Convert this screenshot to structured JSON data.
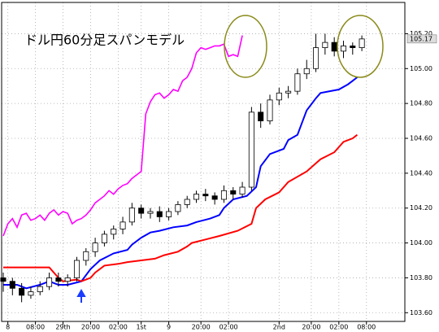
{
  "chart_data": {
    "type": "candlestick",
    "title": "ドル円60分足スパンモデル",
    "x": [
      0,
      2,
      4,
      6,
      8,
      10,
      12,
      14,
      16,
      18,
      20,
      22,
      24,
      26,
      28,
      30,
      32,
      34,
      36,
      38,
      40,
      42,
      44,
      46,
      48,
      50,
      52,
      54,
      56,
      58,
      60,
      62,
      64,
      66,
      68,
      70,
      72,
      74,
      76,
      78
    ],
    "open": [
      103.8,
      103.78,
      103.74,
      103.7,
      103.72,
      103.75,
      103.8,
      103.78,
      103.8,
      103.9,
      103.95,
      104.0,
      104.05,
      104.08,
      104.12,
      104.2,
      104.17,
      104.18,
      104.15,
      104.18,
      104.22,
      104.25,
      104.28,
      104.27,
      104.25,
      104.3,
      104.28,
      104.32,
      104.75,
      104.7,
      104.82,
      104.86,
      104.87,
      104.97,
      105.0,
      105.12,
      105.15,
      105.1,
      105.13,
      105.12
    ],
    "high": [
      103.83,
      103.8,
      103.77,
      103.75,
      103.78,
      103.83,
      103.83,
      103.82,
      103.92,
      103.97,
      104.03,
      104.07,
      104.1,
      104.15,
      104.23,
      104.22,
      104.2,
      104.21,
      104.2,
      104.24,
      104.27,
      104.3,
      104.31,
      104.29,
      104.33,
      104.32,
      104.35,
      104.78,
      104.8,
      104.85,
      104.89,
      104.9,
      105.0,
      105.05,
      105.2,
      105.2,
      105.18,
      105.16,
      105.15,
      105.19
    ],
    "low": [
      103.72,
      103.7,
      103.66,
      103.68,
      103.7,
      103.73,
      103.75,
      103.75,
      103.78,
      103.87,
      103.92,
      103.98,
      104.02,
      104.05,
      104.1,
      104.14,
      104.14,
      104.12,
      104.13,
      104.16,
      104.2,
      104.23,
      104.24,
      104.22,
      104.23,
      104.25,
      104.26,
      104.3,
      104.66,
      104.68,
      104.79,
      104.83,
      104.85,
      104.94,
      104.98,
      105.08,
      105.07,
      105.06,
      105.08,
      105.1
    ],
    "close": [
      103.78,
      103.74,
      103.7,
      103.72,
      103.75,
      103.8,
      103.78,
      103.8,
      103.9,
      103.95,
      104.0,
      104.05,
      104.08,
      104.12,
      104.2,
      104.17,
      104.18,
      104.15,
      104.18,
      104.22,
      104.25,
      104.28,
      104.27,
      104.25,
      104.3,
      104.28,
      104.32,
      104.75,
      104.7,
      104.82,
      104.86,
      104.87,
      104.97,
      105.0,
      105.12,
      105.15,
      105.1,
      105.13,
      105.12,
      105.17
    ],
    "lines": [
      {
        "color": "#ff00ff",
        "x": [
          0,
          1,
          2,
          3,
          4,
          5,
          6,
          7,
          8,
          9,
          10,
          11,
          12,
          13,
          14,
          15,
          16,
          17,
          18,
          19,
          20,
          21,
          22,
          23,
          24,
          25,
          26,
          27,
          28,
          29,
          30,
          31,
          32,
          33,
          34,
          35,
          36,
          37,
          38,
          39,
          40,
          41,
          42,
          43,
          44,
          45,
          46,
          47,
          48,
          49,
          50,
          51,
          52
        ],
        "values": [
          104.04,
          104.11,
          104.14,
          104.09,
          104.16,
          104.17,
          104.13,
          104.14,
          104.16,
          104.13,
          104.17,
          104.19,
          104.16,
          104.18,
          104.17,
          104.11,
          104.13,
          104.14,
          104.16,
          104.19,
          104.23,
          104.25,
          104.27,
          104.3,
          104.28,
          104.31,
          104.33,
          104.34,
          104.37,
          104.39,
          104.41,
          104.74,
          104.81,
          104.85,
          104.86,
          104.83,
          104.85,
          104.88,
          104.87,
          104.93,
          104.95,
          105.0,
          105.09,
          105.12,
          105.11,
          105.12,
          105.13,
          105.13,
          105.14,
          105.07,
          105.08,
          105.07,
          105.19
        ]
      },
      {
        "color": "#0000ff",
        "x": [
          0,
          3,
          5,
          8,
          10,
          12,
          14,
          17,
          19,
          21,
          24,
          27,
          28,
          30,
          32,
          34,
          37,
          40,
          42,
          45,
          47,
          48,
          50,
          53,
          55,
          56,
          58,
          61,
          62,
          64,
          66,
          68,
          69,
          71,
          73,
          75,
          76,
          77
        ],
        "values": [
          103.76,
          103.76,
          103.74,
          103.76,
          103.78,
          103.76,
          103.76,
          103.78,
          103.85,
          103.9,
          103.94,
          103.96,
          103.99,
          104.03,
          104.06,
          104.07,
          104.09,
          104.1,
          104.12,
          104.14,
          104.16,
          104.2,
          104.25,
          104.27,
          104.32,
          104.44,
          104.51,
          104.54,
          104.59,
          104.62,
          104.76,
          104.83,
          104.86,
          104.87,
          104.88,
          104.91,
          104.93,
          104.95
        ]
      },
      {
        "color": "#ff0000",
        "x": [
          0,
          10,
          12,
          13,
          16,
          17,
          19,
          20,
          22,
          25,
          27,
          30,
          33,
          35,
          38,
          40,
          41,
          44,
          47,
          51,
          54,
          55,
          57,
          60,
          62,
          66,
          69,
          72,
          74,
          76,
          77
        ],
        "values": [
          103.86,
          103.86,
          103.8,
          103.78,
          103.79,
          103.78,
          103.8,
          103.83,
          103.87,
          103.88,
          103.89,
          103.9,
          103.91,
          103.93,
          103.95,
          103.98,
          104.0,
          104.02,
          104.04,
          104.07,
          104.11,
          104.2,
          104.25,
          104.29,
          104.35,
          104.41,
          104.48,
          104.52,
          104.58,
          104.6,
          104.62
        ]
      }
    ],
    "last_price": 105.17,
    "xlim": [
      0,
      87
    ],
    "ylim": [
      103.55,
      105.37
    ],
    "xticks": [
      {
        "value": 1,
        "label": "8"
      },
      {
        "value": 7,
        "label": "08:00"
      },
      {
        "value": 13,
        "label": "29th"
      },
      {
        "value": 19,
        "label": "20:00"
      },
      {
        "value": 25,
        "label": "02:00"
      },
      {
        "value": 30,
        "label": "1st"
      },
      {
        "value": 36,
        "label": "9"
      },
      {
        "value": 43,
        "label": "20:00"
      },
      {
        "value": 49,
        "label": "02:00"
      },
      {
        "value": 60,
        "label": "2nd"
      },
      {
        "value": 67,
        "label": "20:00"
      },
      {
        "value": 73,
        "label": "02:00"
      },
      {
        "value": 79,
        "label": "08:00"
      }
    ],
    "yticks": [
      {
        "value": 103.6,
        "label": "103.60"
      },
      {
        "value": 103.8,
        "label": "103.80"
      },
      {
        "value": 104.0,
        "label": "104.00"
      },
      {
        "value": 104.2,
        "label": "104.20"
      },
      {
        "value": 104.4,
        "label": "104.40"
      },
      {
        "value": 104.6,
        "label": "104.60"
      },
      {
        "value": 104.8,
        "label": "104.80"
      },
      {
        "value": 105.0,
        "label": "105.00"
      },
      {
        "value": 105.2,
        "label": "105.20"
      }
    ],
    "grid": true
  }
}
